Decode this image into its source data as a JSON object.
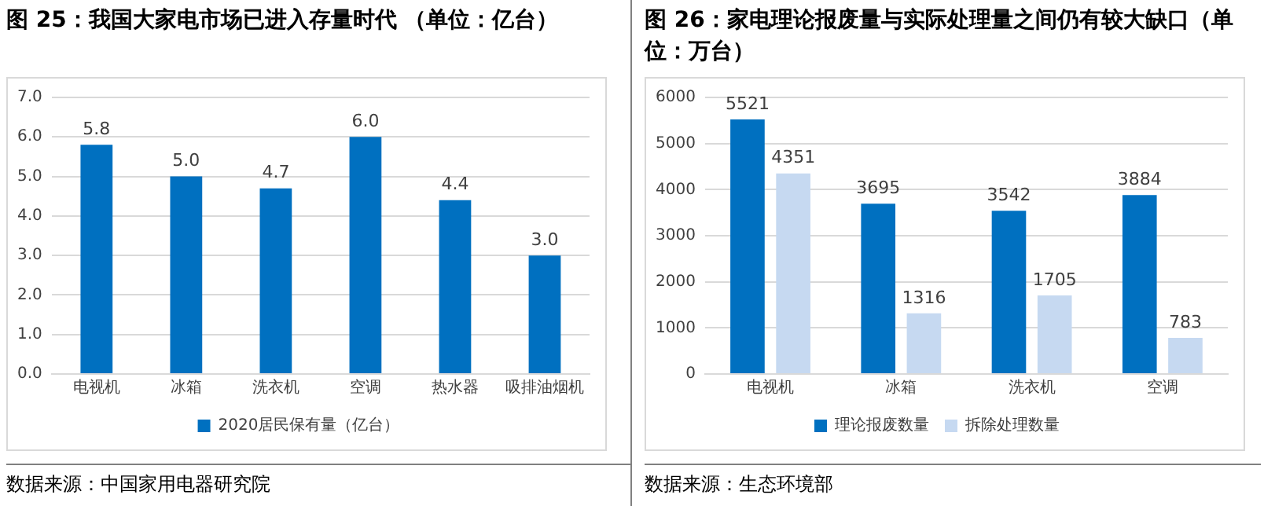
{
  "chart_data": [
    {
      "type": "bar",
      "title": "图 25：我国大家电市场已进入存量时代 （单位：亿台）",
      "categories": [
        "电视机",
        "冰箱",
        "洗衣机",
        "空调",
        "热水器",
        "吸排油烟机"
      ],
      "series": [
        {
          "name": "2020居民保有量（亿台）",
          "color": "#0070c0",
          "values": [
            5.8,
            5.0,
            4.7,
            6.0,
            4.4,
            3.0
          ],
          "value_labels": [
            "5.8",
            "5.0",
            "4.7",
            "6.0",
            "4.4",
            "3.0"
          ]
        }
      ],
      "ylim": [
        0,
        7
      ],
      "yticks": [
        {
          "value": 0,
          "label": "0.0"
        },
        {
          "value": 1,
          "label": "1.0"
        },
        {
          "value": 2,
          "label": "2.0"
        },
        {
          "value": 3,
          "label": "3.0"
        },
        {
          "value": 4,
          "label": "4.0"
        },
        {
          "value": 5,
          "label": "5.0"
        },
        {
          "value": 6,
          "label": "6.0"
        },
        {
          "value": 7,
          "label": "7.0"
        }
      ],
      "grid": "y",
      "legend": "bottom",
      "annotations": [
        "数据来源：中国家用电器研究院"
      ]
    },
    {
      "type": "bar",
      "title": "图 26：家电理论报废量与实际处理量之间仍有较大缺口（单位：万台）",
      "categories": [
        "电视机",
        "冰箱",
        "洗衣机",
        "空调"
      ],
      "series": [
        {
          "name": "理论报废数量",
          "color": "#0070c0",
          "values": [
            5521,
            3695,
            3542,
            3884
          ]
        },
        {
          "name": "拆除处理数量",
          "color": "#c6d9f1",
          "values": [
            4351,
            1316,
            1705,
            783
          ]
        }
      ],
      "ylim": [
        0,
        6000
      ],
      "yticks": [
        0,
        1000,
        2000,
        3000,
        4000,
        5000,
        6000
      ],
      "grid": "y",
      "legend": "bottom",
      "data_labels": true,
      "annotations": [
        "数据来源：生态环境部"
      ]
    }
  ]
}
